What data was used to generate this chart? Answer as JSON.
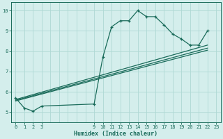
{
  "xlabel": "Humidex (Indice chaleur)",
  "bg_color": "#d4eeec",
  "grid_color": "#aed8d4",
  "line_color": "#1a6b5a",
  "xlim": [
    -0.5,
    23.5
  ],
  "ylim": [
    4.5,
    10.4
  ],
  "xticks": [
    0,
    1,
    2,
    3,
    9,
    10,
    11,
    12,
    13,
    14,
    15,
    16,
    17,
    18,
    19,
    20,
    21,
    22,
    23
  ],
  "yticks": [
    5,
    6,
    7,
    8,
    9,
    10
  ],
  "main_line_x": [
    0,
    1,
    2,
    3,
    9,
    10,
    11,
    12,
    13,
    14,
    15,
    16,
    17,
    18,
    19,
    20,
    21,
    22
  ],
  "main_line_y": [
    5.7,
    5.2,
    5.05,
    5.3,
    5.4,
    7.7,
    9.2,
    9.5,
    9.5,
    10.0,
    9.7,
    9.7,
    9.3,
    8.85,
    8.6,
    8.3,
    8.3,
    9.0
  ],
  "line2_x": [
    0,
    22
  ],
  "line2_y": [
    5.62,
    8.3
  ],
  "line3_x": [
    0,
    22
  ],
  "line3_y": [
    5.58,
    8.15
  ],
  "line4_x": [
    0,
    22
  ],
  "line4_y": [
    5.55,
    8.05
  ]
}
